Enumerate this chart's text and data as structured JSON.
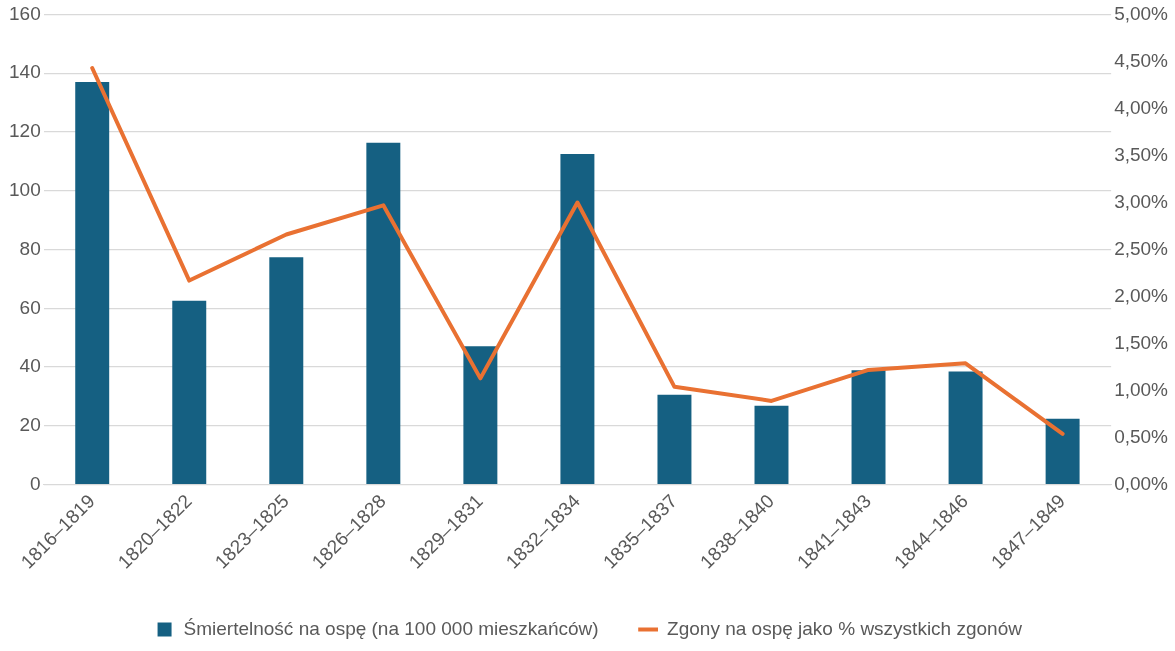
{
  "chart_data": {
    "type": "bar",
    "categories": [
      "1816–1819",
      "1820–1822",
      "1823–1825",
      "1826–1828",
      "1829–1831",
      "1832–1834",
      "1835–1837",
      "1838–1840",
      "1841–1843",
      "1844–1846",
      "1847–1849"
    ],
    "series": [
      {
        "name": "Śmiertelność na ospę (na 100 000 mieszkańców)",
        "color": "#156082",
        "values": [
          137,
          62.6,
          77.4,
          116.3,
          47.1,
          112.5,
          30.6,
          26.8,
          38.9,
          38.5,
          22.4
        ]
      },
      {
        "name": "Zgony na ospę jako % wszystkich zgonów",
        "type": "line",
        "axis": "y2",
        "color": "#e97132",
        "marker": "none",
        "values": [
          4.43,
          2.17,
          2.66,
          2.97,
          1.13,
          3.0,
          1.04,
          0.89,
          1.22,
          1.29,
          0.54
        ]
      }
    ],
    "ylim": [
      0,
      160
    ],
    "yticks": [
      0,
      20,
      40,
      60,
      80,
      100,
      120,
      140,
      160
    ],
    "y2lim": [
      0,
      5
    ],
    "y2ticks": [
      {
        "value": 0,
        "label": "0,00%"
      },
      {
        "value": 0.5,
        "label": "0,50%"
      },
      {
        "value": 1,
        "label": "1,00%"
      },
      {
        "value": 1.5,
        "label": "1,50%"
      },
      {
        "value": 2,
        "label": "2,00%"
      },
      {
        "value": 2.5,
        "label": "2,50%"
      },
      {
        "value": 3,
        "label": "3,00%"
      },
      {
        "value": 3.5,
        "label": "3,50%"
      },
      {
        "value": 4,
        "label": "4,00%"
      },
      {
        "value": 4.5,
        "label": "4,50%"
      },
      {
        "value": 5,
        "label": "5,00%"
      }
    ],
    "grid": "y",
    "legend": "bottom"
  }
}
